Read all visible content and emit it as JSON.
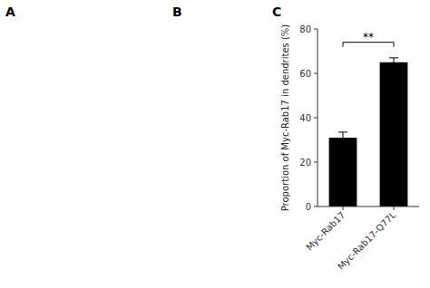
{
  "chart_data": {
    "type": "bar",
    "panel_labels": [
      "A",
      "B",
      "C"
    ],
    "categories": [
      "Myc-Rab17",
      "Myc-Rab17-Q77L"
    ],
    "values": [
      31.0,
      65.0
    ],
    "errors": [
      2.5,
      2.0
    ],
    "color": "#000000",
    "y_label": "Proportion of Myc-Rab17 in dendrites  (%)",
    "ylim": [
      0,
      80
    ],
    "yticks": [
      0,
      20,
      40,
      60,
      80
    ],
    "grid": false,
    "annotations": [
      {
        "text": "**",
        "y": 74,
        "x1": 0,
        "x2": 1
      }
    ]
  }
}
